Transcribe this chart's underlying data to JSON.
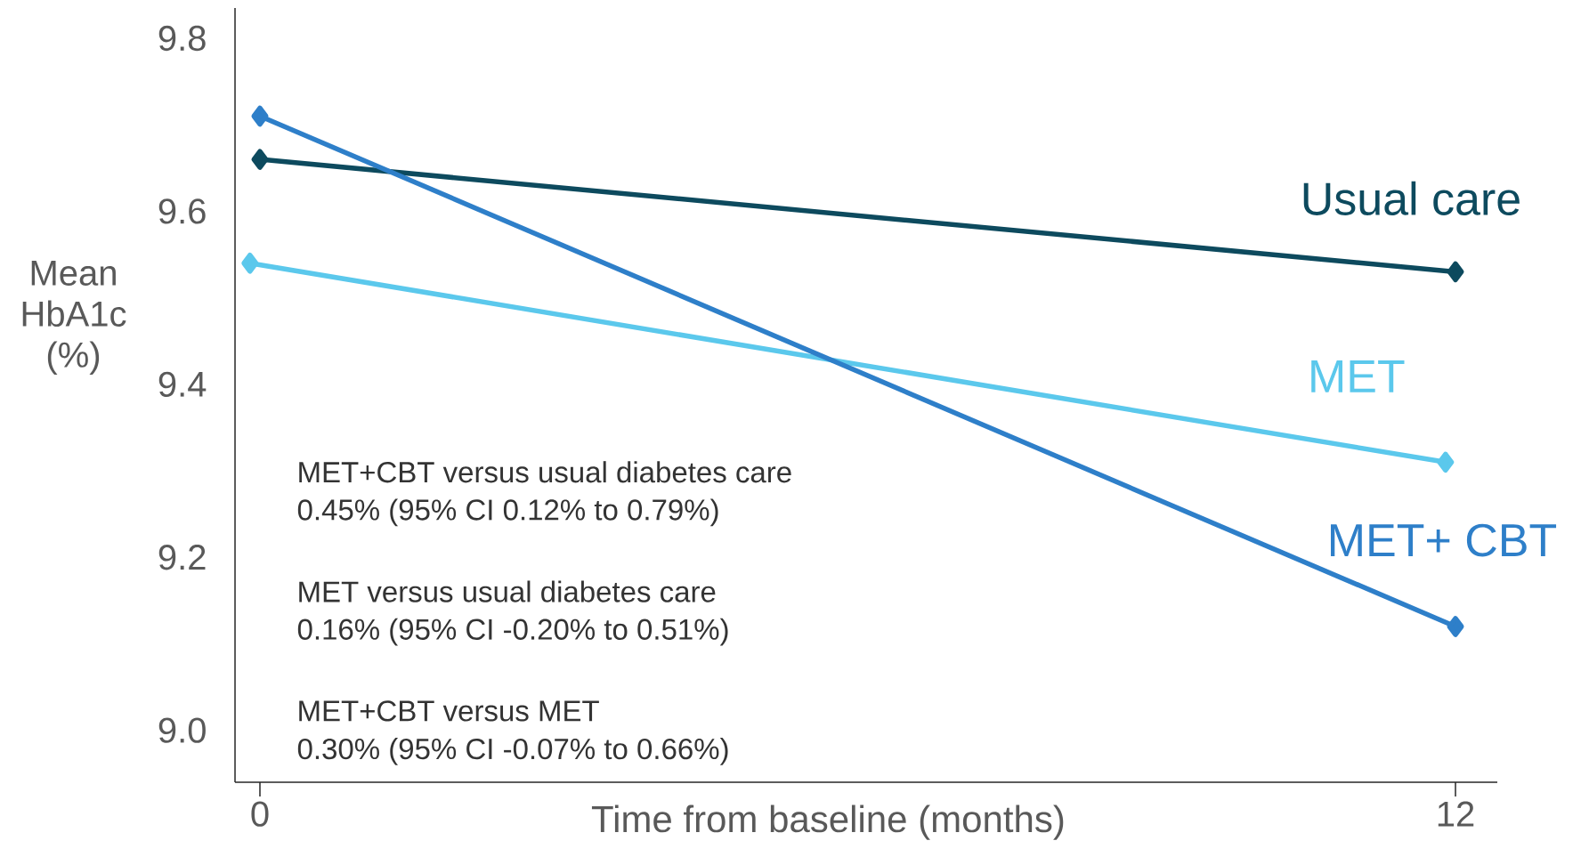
{
  "chart_data": {
    "type": "line",
    "xlabel": "Time from baseline (months)",
    "ylabel": "Mean HbA1c (%)",
    "xlim": [
      -0.25,
      12.42
    ],
    "ylim": [
      8.94,
      9.835
    ],
    "xticks": [
      0,
      12
    ],
    "yticks": [
      {
        "value": 9.0,
        "label": "9.0"
      },
      {
        "value": 9.2,
        "label": "9.2"
      },
      {
        "value": 9.4,
        "label": "9.4"
      },
      {
        "value": 9.6,
        "label": "9.6"
      },
      {
        "value": 9.8,
        "label": "9.8"
      }
    ],
    "marker": "diamond",
    "series": [
      {
        "name": "Usual care",
        "color": "#0d4a5e",
        "x": [
          0,
          12
        ],
        "values": [
          9.66,
          9.53
        ]
      },
      {
        "name": "MET",
        "color": "#5bc8ec",
        "x": [
          -0.1,
          11.9
        ],
        "values": [
          9.54,
          9.31
        ]
      },
      {
        "name": "MET+ CBT",
        "color": "#2e7fc9",
        "x": [
          0,
          12
        ],
        "values": [
          9.71,
          9.12
        ]
      }
    ],
    "annotations": [
      "MET+CBT versus usual diabetes care",
      "0.45% (95% CI 0.12% to 0.79%)",
      "MET versus usual diabetes care",
      "0.16% (95% CI -0.20% to 0.51%)",
      "MET+CBT versus MET",
      "0.30% (95% CI -0.07% to 0.66%)"
    ]
  }
}
